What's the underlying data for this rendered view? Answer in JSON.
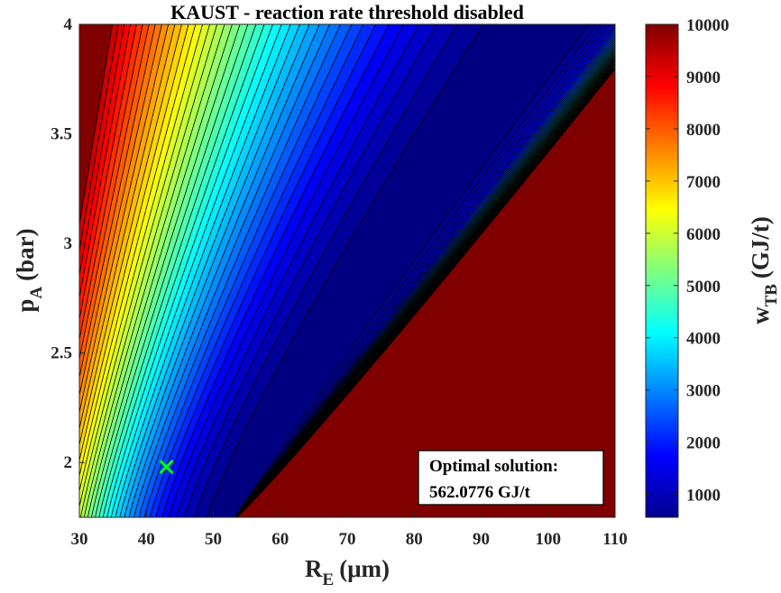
{
  "chart_data": {
    "type": "contour",
    "title": "KAUST - reaction rate threshold disabled",
    "xlabel": {
      "main": "R",
      "sub": "E",
      "units": "(μm)"
    },
    "ylabel": {
      "main": "p",
      "sub": "A",
      "units": "(bar)"
    },
    "xlim": [
      30,
      110
    ],
    "ylim": [
      1.75,
      4
    ],
    "xticks": [
      30,
      40,
      50,
      60,
      70,
      80,
      90,
      100,
      110
    ],
    "yticks": [
      2,
      2.5,
      3,
      3.5,
      4
    ],
    "colorbar": {
      "label": {
        "main": "w",
        "sub": "TB",
        "units": "(GJ/t)"
      },
      "range": [
        562.0776,
        10000
      ],
      "ticks": [
        1000,
        2000,
        3000,
        4000,
        5000,
        6000,
        7000,
        8000,
        9000,
        10000
      ],
      "colormap": "jet"
    },
    "contour_levels": 40,
    "saturated_region_value": 10000,
    "optimal_point": {
      "x": 43,
      "y": 1.98,
      "marker": "x",
      "color": "#00ff00"
    },
    "annotation": {
      "line1": "Optimal solution:",
      "line2": "562.0776 GJ/t"
    }
  }
}
